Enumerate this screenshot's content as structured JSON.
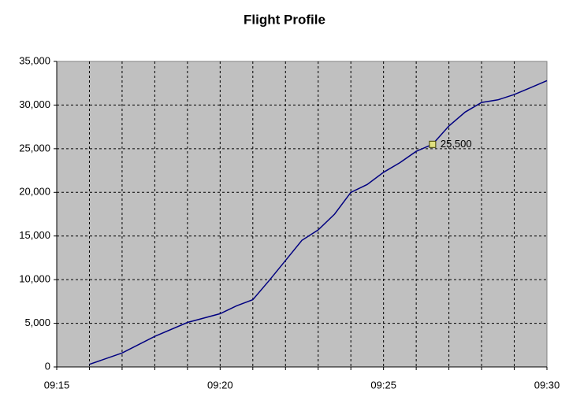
{
  "chart_data": {
    "type": "line",
    "title": "Flight Profile",
    "x": [
      556,
      557,
      558,
      559,
      560,
      560.5,
      561,
      561.5,
      562,
      562.5,
      563,
      563.5,
      564,
      564.5,
      565,
      565.5,
      566,
      566.5,
      567,
      567.5,
      568,
      568.5,
      569,
      569.5,
      570
    ],
    "values": [
      300,
      1600,
      3500,
      5100,
      6100,
      7000,
      7700,
      9900,
      12200,
      14500,
      15700,
      17500,
      20000,
      20900,
      22300,
      23400,
      24700,
      25500,
      27600,
      29200,
      30300,
      30600,
      31200,
      32000,
      32800
    ],
    "color": "#000080",
    "xlim": [
      555,
      570
    ],
    "xticks": [
      {
        "value": 555,
        "label": "09:15"
      },
      {
        "value": 560,
        "label": "09:20"
      },
      {
        "value": 565,
        "label": "09:25"
      },
      {
        "value": 570,
        "label": "09:30"
      }
    ],
    "x_minor_ticks": [
      556,
      557,
      558,
      559,
      561,
      562,
      563,
      564,
      566,
      567,
      568,
      569
    ],
    "ylim": [
      0,
      35000
    ],
    "yticks": [
      0,
      {
        "value": 5000,
        "label": "5,000"
      },
      {
        "value": 10000,
        "label": "10,000"
      },
      {
        "value": 15000,
        "label": "15,000"
      },
      {
        "value": 20000,
        "label": "20,000"
      },
      {
        "value": 25000,
        "label": "25,000"
      },
      {
        "value": 30000,
        "label": "30,000"
      },
      {
        "value": 35000,
        "label": "35,000"
      }
    ],
    "grid": true,
    "annotation": {
      "x": 566.5,
      "value": 25500,
      "label": "25,500"
    }
  }
}
